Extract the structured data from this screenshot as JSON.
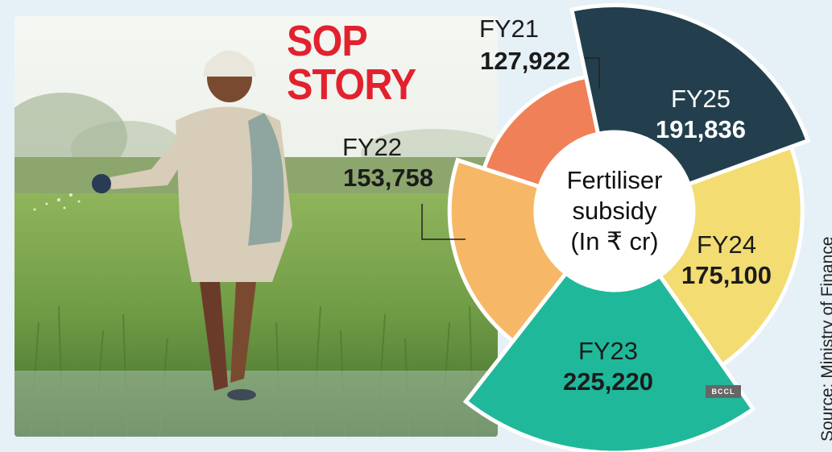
{
  "headline": {
    "line1": "SOP",
    "line2": "STORY"
  },
  "source": "Source: Ministry of Finance",
  "credit": "BCCL",
  "colors": {
    "headline": "#e3212e",
    "FY21": "#f08057",
    "FY22": "#f6b867",
    "FY23": "#20b89b",
    "FY24": "#f3dc72",
    "FY25": "#233f4d",
    "background": "#e6f0f7"
  },
  "chart_data": {
    "type": "pie",
    "variant": "polar-area",
    "center_label": [
      "Fertiliser",
      "subsidy",
      "(In ₹ cr)"
    ],
    "categories": [
      "FY21",
      "FY22",
      "FY23",
      "FY24",
      "FY25"
    ],
    "values": [
      127922,
      153758,
      225220,
      175100,
      191836
    ],
    "value_labels": [
      "127,922",
      "153,758",
      "225,220",
      "175,100",
      "191,836"
    ]
  }
}
